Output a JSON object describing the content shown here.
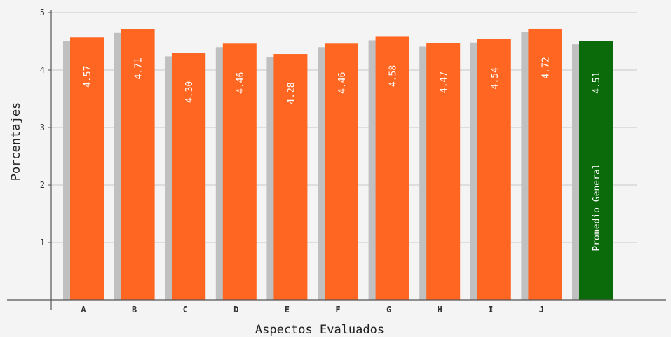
{
  "chart_data": {
    "type": "bar",
    "title": "",
    "xlabel": "Aspectos Evaluados",
    "ylabel": "Porcentajes",
    "ylim": [
      0,
      5
    ],
    "yticks": [
      1,
      2,
      3,
      4,
      5
    ],
    "grid": true,
    "categories": [
      "A",
      "B",
      "C",
      "D",
      "E",
      "F",
      "G",
      "H",
      "I",
      "J"
    ],
    "values": [
      4.57,
      4.71,
      4.3,
      4.46,
      4.28,
      4.46,
      4.58,
      4.47,
      4.54,
      4.72
    ],
    "value_labels": [
      "4.57",
      "4.71",
      "4.30",
      "4.46",
      "4.28",
      "4.46",
      "4.58",
      "4.47",
      "4.54",
      "4.72"
    ],
    "average": {
      "label": "Promedio General",
      "value": 4.51,
      "value_label": "4.51"
    },
    "colors": {
      "bar": "#ff6622",
      "average_bar": "#0b6b0b",
      "shadow": "#c0c0c0",
      "grid": "#c8c8c8",
      "axis": "#555555"
    }
  }
}
